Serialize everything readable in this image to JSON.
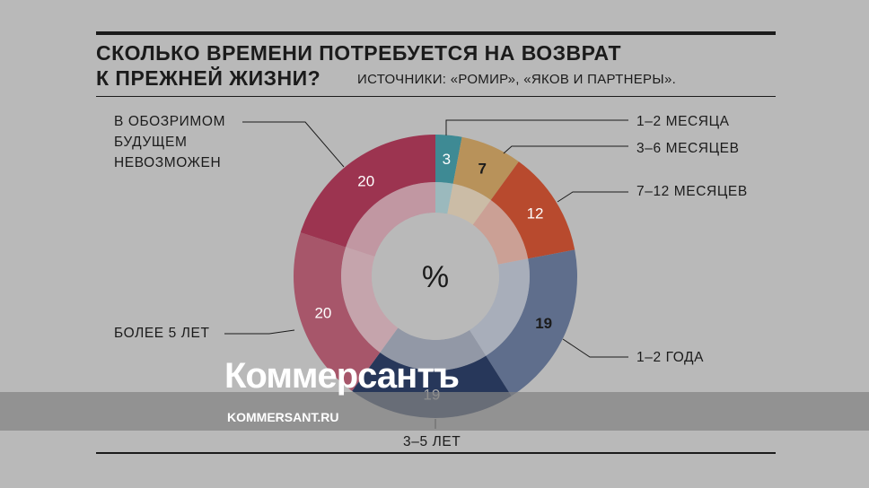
{
  "title_line1": "СКОЛЬКО ВРЕМЕНИ ПОТРЕБУЕТСЯ НА ВОЗВРАТ",
  "title_line2": "К ПРЕЖНЕЙ ЖИЗНИ?",
  "source": "ИСТОЧНИКИ: «РОМИР», «ЯКОВ И ПАРТНЕРЫ».",
  "watermark": {
    "logo": "Коммерсантъ",
    "site": "KOMMERSANT.RU"
  },
  "chart_data": {
    "type": "pie",
    "style": "donut",
    "center_label": "%",
    "categories": [
      "1–2 МЕСЯЦА",
      "3–6 МЕСЯЦЕВ",
      "7–12 МЕСЯЦЕВ",
      "1–2 ГОДА",
      "3–5 ЛЕТ",
      "БОЛЕЕ 5 ЛЕТ",
      "В ОБОЗРИМОМ БУДУЩЕМ НЕВОЗМОЖЕН"
    ],
    "values": [
      3,
      7,
      12,
      19,
      19,
      20,
      20
    ],
    "value_labels": [
      "3",
      "7",
      "12",
      "19",
      "19",
      "20",
      "20"
    ],
    "colors": [
      "#3e8a94",
      "#b8925a",
      "#b84a2e",
      "#5f6e8c",
      "#27375a",
      "#a7566a",
      "#9c3450"
    ],
    "label_colors": [
      "#ffffff",
      "#1b1b1b",
      "#ffffff",
      "#1b1b1b",
      "#a8a8a8",
      "#ffffff",
      "#ffffff"
    ],
    "legend": "callouts around chart"
  }
}
